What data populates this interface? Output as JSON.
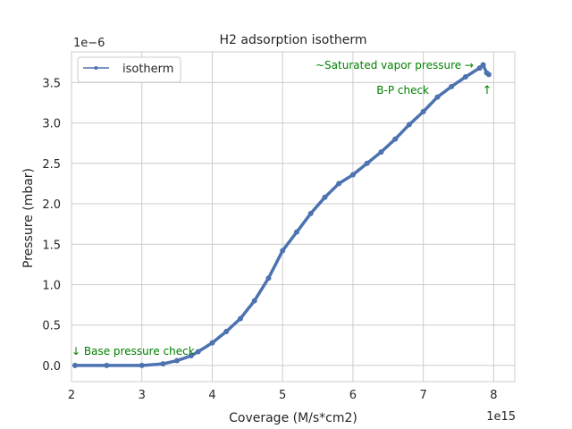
{
  "chart_data": {
    "type": "line",
    "title": "H2 adsorption isotherm",
    "xlabel": "Coverage (M/s*cm2)",
    "ylabel": "Pressure (mbar)",
    "x_multiplier": "1e15",
    "y_multiplier": "1e−6",
    "xlim": [
      2.0,
      8.3
    ],
    "ylim": [
      -0.2,
      3.88
    ],
    "xticks": [
      2,
      3,
      4,
      5,
      6,
      7,
      8
    ],
    "xtick_labels": [
      "2",
      "3",
      "4",
      "5",
      "6",
      "7",
      "8"
    ],
    "yticks": [
      0.0,
      0.5,
      1.0,
      1.5,
      2.0,
      2.5,
      3.0,
      3.5
    ],
    "ytick_labels": [
      "0.0",
      "0.5",
      "1.0",
      "1.5",
      "2.0",
      "2.5",
      "3.0",
      "3.5"
    ],
    "grid": true,
    "legend": {
      "position": "top-left",
      "entries": [
        "isotherm"
      ]
    },
    "colors": {
      "series": "#4c72b0",
      "annotation": "#008000",
      "grid": "#cccccc",
      "axes": "#cccccc"
    },
    "series": [
      {
        "name": "isotherm",
        "x": [
          2.05,
          2.5,
          3.0,
          3.3,
          3.5,
          3.7,
          3.8,
          4.0,
          4.2,
          4.4,
          4.6,
          4.8,
          5.0,
          5.2,
          5.4,
          5.6,
          5.8,
          6.0,
          6.2,
          6.4,
          6.6,
          6.8,
          7.0,
          7.2,
          7.4,
          7.6,
          7.8,
          7.85,
          7.9,
          7.93
        ],
        "y": [
          0.0,
          0.0,
          0.0,
          0.02,
          0.06,
          0.12,
          0.17,
          0.28,
          0.42,
          0.58,
          0.8,
          1.08,
          1.42,
          1.65,
          1.88,
          2.08,
          2.25,
          2.36,
          2.5,
          2.64,
          2.8,
          2.98,
          3.14,
          3.32,
          3.45,
          3.57,
          3.68,
          3.72,
          3.62,
          3.6
        ]
      }
    ],
    "annotations": [
      {
        "text": "↓ Base pressure check"
      },
      {
        "text": "~Saturated vapor pressure →"
      },
      {
        "text": "B-P check"
      },
      {
        "text": "↑"
      }
    ]
  }
}
